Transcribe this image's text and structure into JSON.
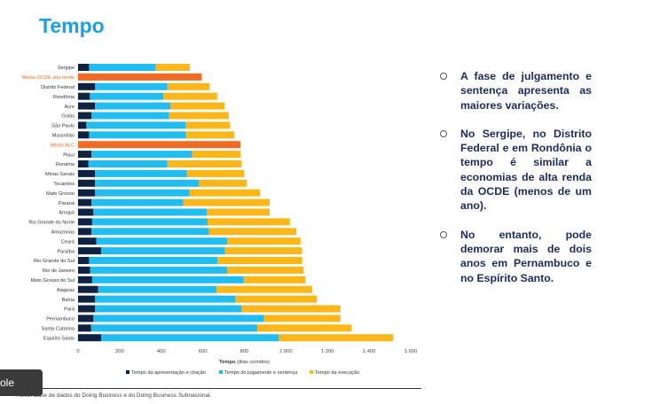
{
  "title": "Tempo",
  "bullets": [
    "A fase de julgamento e sentença apresenta as maiores variações.",
    "No Sergipe, no Distrito Federal e em Rondônia o tempo é similar a economias de alta renda da OCDE (menos de um ano).",
    "No entanto, pode demorar mais de dois anos em Pernambuco e no Espírito Santo."
  ],
  "source": "Fonte: Base de dados do Doing Business e do Doing Business Subnacional.",
  "tooltip_label": "ole",
  "colors": {
    "seg1": "#0f2340",
    "seg2": "#22bdf0",
    "seg3": "#fbb619",
    "avg": "#f26a24",
    "avg_label": "#f26a24",
    "label": "#333333"
  },
  "chart_data": {
    "type": "bar",
    "orientation": "horizontal",
    "stacked": true,
    "categories": [
      "Sergipe",
      "Média OCDE alta renda",
      "Distrito Federal",
      "Rondônia",
      "Acre",
      "Goiás",
      "São Paulo",
      "Maranhão",
      "Média ALC",
      "Piauí",
      "Roraima",
      "Minas Gerais",
      "Tocantins",
      "Mato Grosso",
      "Paraná",
      "Amapá",
      "Rio Grande do Norte",
      "Amazonas",
      "Ceará",
      "Paraíba",
      "Rio Grande do Sul",
      "Rio de Janeiro",
      "Mato Grosso do Sul",
      "Alagoas",
      "Bahia",
      "Pará",
      "Pernambuco",
      "Santa Catarina",
      "Espírito Santo"
    ],
    "highlight_categories": [
      "Média OCDE alta renda",
      "Média ALC"
    ],
    "highlight_totals": {
      "Média OCDE alta renda": 595,
      "Média ALC": 781
    },
    "series": [
      {
        "name": "Tempo da apresentação e citação",
        "values": [
          53,
          null,
          81,
          57,
          81,
          65,
          40,
          53,
          null,
          65,
          50,
          81,
          81,
          81,
          65,
          74,
          68,
          65,
          88,
          111,
          53,
          58,
          68,
          97,
          81,
          81,
          74,
          63,
          111
        ]
      },
      {
        "name": "Tempo do julgamento e sentença",
        "values": [
          320,
          null,
          349,
          354,
          364,
          373,
          478,
          465,
          null,
          483,
          380,
          442,
          501,
          454,
          441,
          546,
          555,
          565,
          630,
          596,
          617,
          660,
          729,
          570,
          676,
          706,
          821,
          799,
          855
        ]
      },
      {
        "name": "Tempo da execução",
        "values": [
          165,
          null,
          203,
          258,
          259,
          287,
          213,
          234,
          null,
          234,
          357,
          276,
          230,
          340,
          416,
          302,
          396,
          420,
          352,
          370,
          408,
          367,
          297,
          460,
          391,
          475,
          367,
          454,
          549
        ]
      }
    ],
    "xlabel": "Tempo",
    "xlabel_suffix": "(dias corridos)",
    "xlim": [
      0,
      1600
    ],
    "xticks": [
      0,
      200,
      400,
      600,
      800,
      1000,
      1200,
      1400,
      1600
    ],
    "xtick_labels": [
      "0",
      "200",
      "400",
      "600",
      "800",
      "1.000",
      "1.200",
      "1.400",
      "1.600"
    ],
    "legend_position": "bottom",
    "grid": false
  }
}
